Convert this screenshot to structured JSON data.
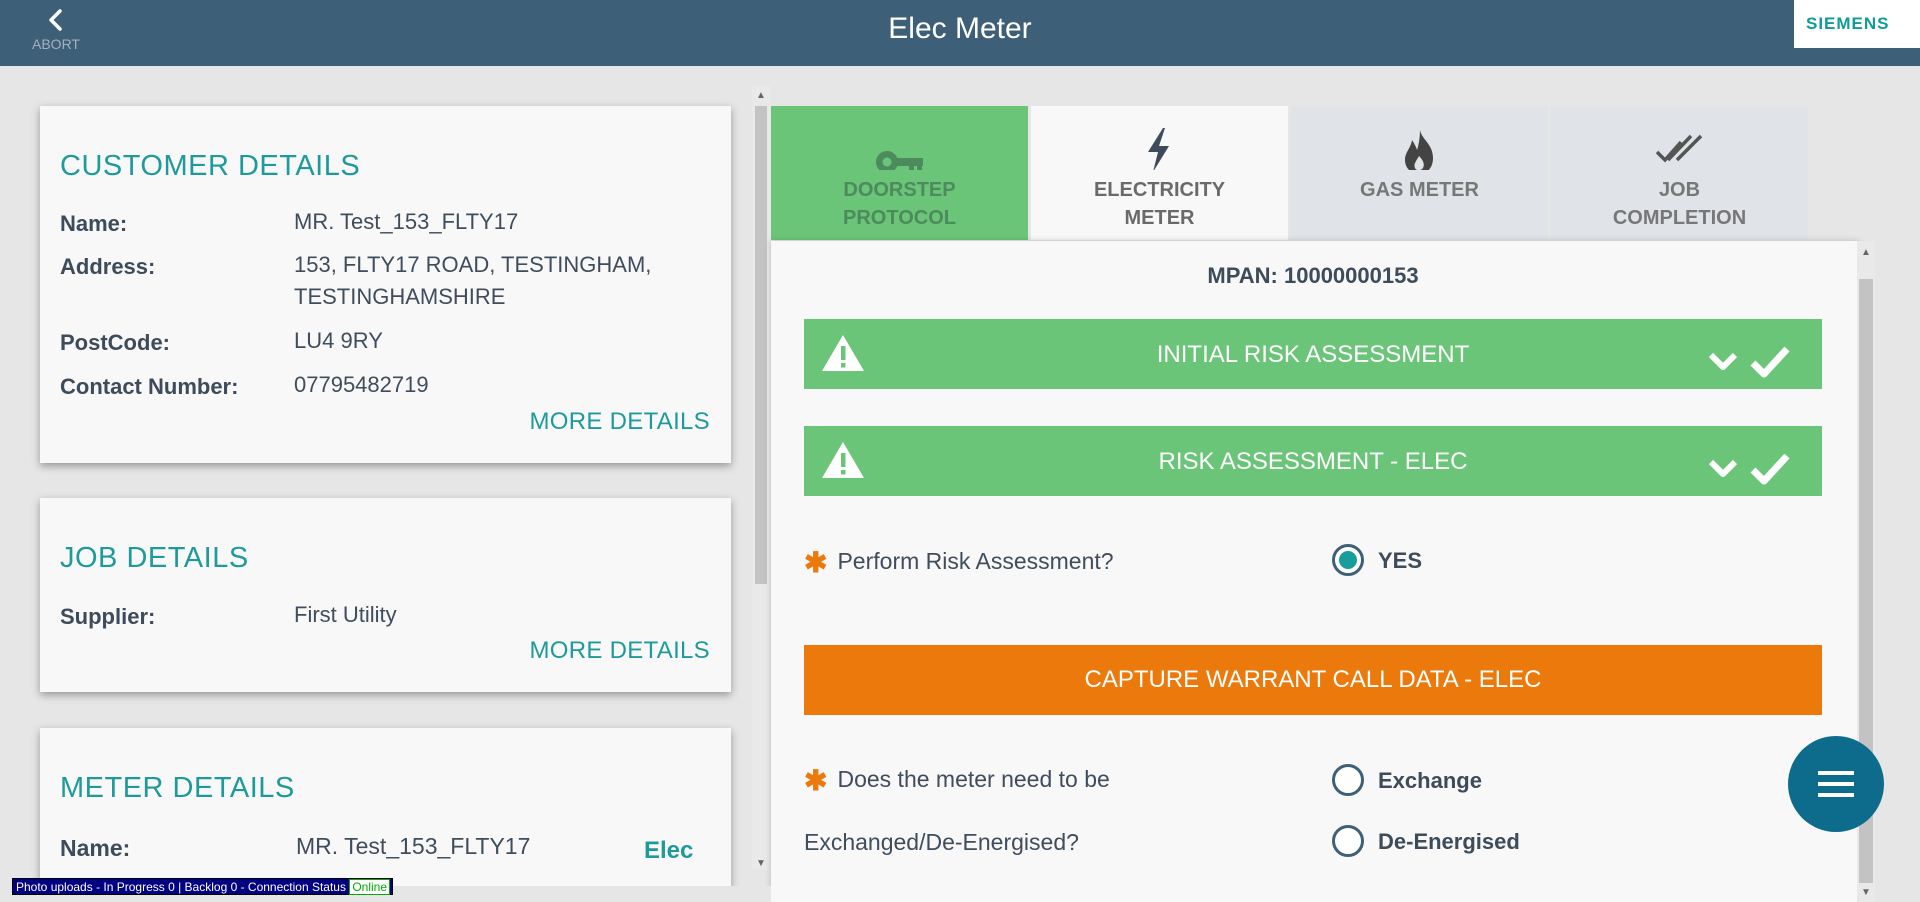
{
  "header": {
    "title": "Elec Meter",
    "abort_label": "ABORT",
    "logo_text": "SIEMENS",
    "brand_color": "#3e5f78"
  },
  "customer": {
    "heading": "CUSTOMER DETAILS",
    "name_label": "Name:",
    "name_value": "MR. Test_153_FLTY17",
    "address_label": "Address:",
    "address_line1": "153, FLTY17 ROAD, TESTINGHAM,",
    "address_line2": "TESTINGHAMSHIRE",
    "postcode_label": "PostCode:",
    "postcode_value": "LU4 9RY",
    "contact_label": "Contact Number:",
    "contact_value": "07795482719",
    "more": "MORE DETAILS"
  },
  "job": {
    "heading": "JOB DETAILS",
    "supplier_label": "Supplier:",
    "supplier_value": "First Utility",
    "more": "MORE DETAILS"
  },
  "meter": {
    "heading": "METER DETAILS",
    "name_label": "Name:",
    "name_value": "MR. Test_153_FLTY17",
    "type": "Elec"
  },
  "tabs": [
    {
      "line1": "DOORSTEP",
      "line2": "PROTOCOL",
      "icon": "key-icon",
      "state": "complete"
    },
    {
      "line1": "ELECTRICITY",
      "line2": "METER",
      "icon": "lightning-icon",
      "state": "active"
    },
    {
      "line1": "GAS METER",
      "line2": "",
      "icon": "flame-icon",
      "state": "inactive"
    },
    {
      "line1": "JOB",
      "line2": "COMPLETION",
      "icon": "double-check-icon",
      "state": "inactive"
    }
  ],
  "panel": {
    "mpan": "MPAN: 10000000153",
    "section1": "INITIAL RISK ASSESSMENT",
    "section2": "RISK ASSESSMENT - ELEC",
    "q1": "Perform Risk Assessment?",
    "q1_option": "YES",
    "capture_button": "CAPTURE WARRANT CALL DATA - ELEC",
    "q2_line1": "Does the meter need to be",
    "q2_line2": "Exchanged/De-Energised?",
    "q2_option1": "Exchange",
    "q2_option2": "De-Energised"
  },
  "status_bar": {
    "text": "Photo uploads - In Progress 0 | Backlog 0 - Connection Status",
    "connection": "Online"
  },
  "colors": {
    "accent_teal": "#1f9a9a",
    "green": "#6ac578",
    "orange": "#ec790c",
    "fab": "#0d6c8c"
  }
}
